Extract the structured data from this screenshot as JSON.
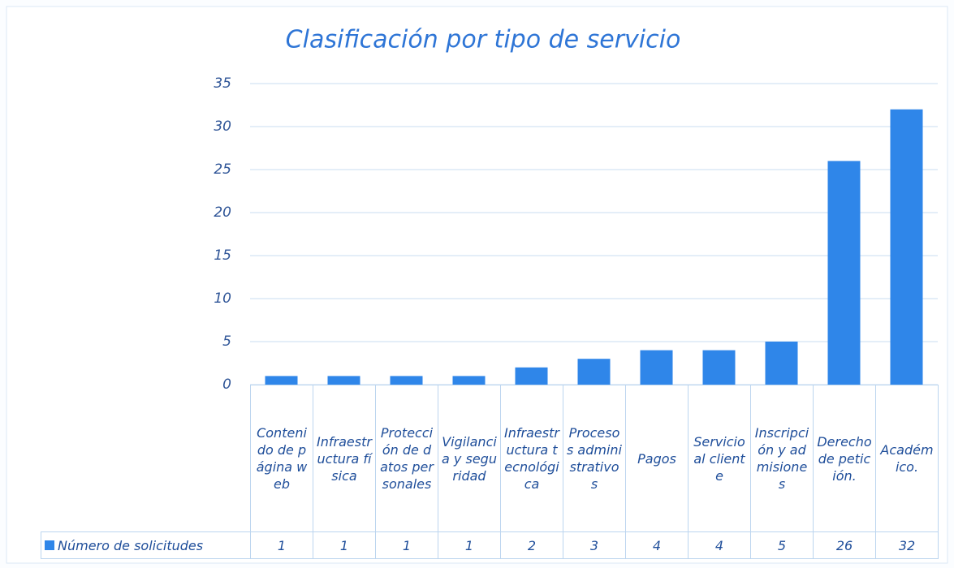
{
  "chart_data": {
    "type": "bar",
    "title": "Clasificación por tipo de servicio",
    "categories": [
      "Contenido de página web",
      "Infraestructura física",
      "Protección de datos personales",
      "Vigilancia y seguridad",
      "Infraestructura tecnológica",
      "Procesos administrativos",
      "Pagos",
      "Servicio al cliente",
      "Inscripción y admisiones",
      "Derecho de petición.",
      "Académico."
    ],
    "series": [
      {
        "name": "Número de solicitudes",
        "color": "#2f86e9",
        "values": [
          1,
          1,
          1,
          1,
          2,
          3,
          4,
          4,
          5,
          26,
          32
        ]
      }
    ],
    "ylim": [
      0,
      35
    ],
    "yticks": [
      0,
      5,
      10,
      15,
      20,
      25,
      30,
      35
    ],
    "grid": true,
    "data_table": true
  }
}
